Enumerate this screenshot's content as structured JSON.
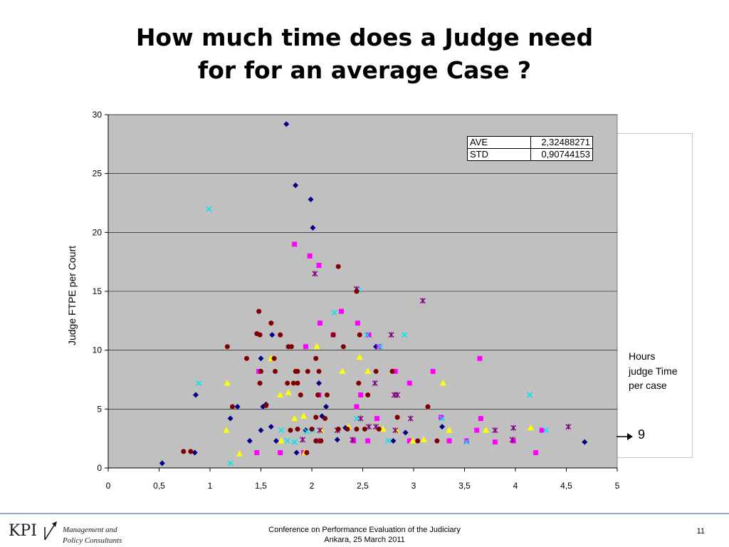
{
  "title": {
    "line1": "How much time does a Judge need",
    "line2": "for for an average Case ?"
  },
  "stats_table": {
    "rows": [
      {
        "label": "AVE",
        "value": "2,32488271"
      },
      {
        "label": "STD",
        "value": "0,90744153"
      }
    ]
  },
  "side_note": {
    "label": "Hours judge Time per case",
    "value": "9",
    "arrow_icon": "right-arrow-icon"
  },
  "footer": {
    "logo_text": "KPI",
    "tagline_line1": "Management and",
    "tagline_line2": "Policy Consultants",
    "conference_line1": "Conference on Performance Evaluation of the Judiciary",
    "conference_line2": "Ankara, 25 March 2011",
    "slide_number": "11",
    "rule_color": "#9aa9c8"
  },
  "chart_data": {
    "type": "scatter",
    "xlabel": "",
    "ylabel": "Judge FTPE per Court",
    "xlim": [
      0,
      5
    ],
    "ylim": [
      0,
      30
    ],
    "x_ticks": [
      "0",
      "0,5",
      "1",
      "1,5",
      "2",
      "2,5",
      "3",
      "3,5",
      "4",
      "4,5",
      "5"
    ],
    "y_ticks": [
      "0",
      "5",
      "10",
      "15",
      "20",
      "25",
      "30"
    ],
    "grid": "horizontal",
    "background": "#c0c0c0",
    "legend": "none",
    "series": [
      {
        "marker": "diamond",
        "color": "#00008b",
        "points": [
          [
            1.75,
            29.2
          ],
          [
            1.84,
            24.0
          ],
          [
            1.99,
            22.8
          ],
          [
            2.01,
            20.4
          ],
          [
            0.53,
            0.4
          ],
          [
            0.85,
            1.3
          ],
          [
            0.86,
            6.2
          ],
          [
            1.2,
            4.2
          ],
          [
            1.27,
            5.2
          ],
          [
            1.39,
            2.3
          ],
          [
            1.5,
            3.2
          ],
          [
            1.52,
            5.2
          ],
          [
            1.55,
            5.4
          ],
          [
            1.6,
            3.5
          ],
          [
            1.61,
            11.3
          ],
          [
            1.65,
            2.3
          ],
          [
            1.85,
            1.3
          ],
          [
            1.94,
            3.2
          ],
          [
            2.07,
            7.2
          ],
          [
            2.1,
            4.4
          ],
          [
            2.14,
            5.2
          ],
          [
            2.25,
            2.4
          ],
          [
            2.33,
            3.4
          ],
          [
            2.63,
            10.3
          ],
          [
            2.8,
            2.3
          ],
          [
            2.92,
            3.0
          ],
          [
            3.28,
            3.5
          ],
          [
            4.68,
            2.2
          ],
          [
            1.5,
            9.3
          ]
        ]
      },
      {
        "marker": "square",
        "color": "#ff00ff",
        "points": [
          [
            1.83,
            19.0
          ],
          [
            1.98,
            18.0
          ],
          [
            2.07,
            17.2
          ],
          [
            2.29,
            13.3
          ],
          [
            2.45,
            12.3
          ],
          [
            2.08,
            12.3
          ],
          [
            1.94,
            10.3
          ],
          [
            1.48,
            8.2
          ],
          [
            1.46,
            1.3
          ],
          [
            1.69,
            1.3
          ],
          [
            1.92,
            1.3
          ],
          [
            2.07,
            6.2
          ],
          [
            2.21,
            11.3
          ],
          [
            2.44,
            5.2
          ],
          [
            2.48,
            6.2
          ],
          [
            2.66,
            10.3
          ],
          [
            2.56,
            11.3
          ],
          [
            2.82,
            8.2
          ],
          [
            2.96,
            7.2
          ],
          [
            2.96,
            2.3
          ],
          [
            3.19,
            8.2
          ],
          [
            3.27,
            4.3
          ],
          [
            3.35,
            2.3
          ],
          [
            3.52,
            2.3
          ],
          [
            3.62,
            3.2
          ],
          [
            3.65,
            9.3
          ],
          [
            3.66,
            4.2
          ],
          [
            3.8,
            2.2
          ],
          [
            3.98,
            2.3
          ],
          [
            4.2,
            1.3
          ],
          [
            4.26,
            3.2
          ],
          [
            2.41,
            2.3
          ],
          [
            2.55,
            2.3
          ],
          [
            2.64,
            4.2
          ]
        ]
      },
      {
        "marker": "triangle",
        "color": "#ffff00",
        "points": [
          [
            1.17,
            7.2
          ],
          [
            1.16,
            3.2
          ],
          [
            1.29,
            1.2
          ],
          [
            1.6,
            9.3
          ],
          [
            1.69,
            6.2
          ],
          [
            1.77,
            6.4
          ],
          [
            1.7,
            2.3
          ],
          [
            1.83,
            4.2
          ],
          [
            1.92,
            4.4
          ],
          [
            1.93,
            1.3
          ],
          [
            2.05,
            10.3
          ],
          [
            2.09,
            3.2
          ],
          [
            2.3,
            8.2
          ],
          [
            2.36,
            3.5
          ],
          [
            2.47,
            9.4
          ],
          [
            2.55,
            8.2
          ],
          [
            2.7,
            3.3
          ],
          [
            2.83,
            3.2
          ],
          [
            2.99,
            2.3
          ],
          [
            3.1,
            2.4
          ],
          [
            3.29,
            7.2
          ],
          [
            3.35,
            3.2
          ],
          [
            3.71,
            3.2
          ],
          [
            4.15,
            3.4
          ]
        ]
      },
      {
        "marker": "x",
        "color": "#00e5ee",
        "points": [
          [
            0.99,
            22.0
          ],
          [
            0.89,
            7.2
          ],
          [
            1.2,
            0.4
          ],
          [
            1.7,
            3.2
          ],
          [
            1.76,
            2.3
          ],
          [
            1.83,
            2.2
          ],
          [
            1.95,
            3.1
          ],
          [
            2.01,
            3.2
          ],
          [
            2.22,
            13.2
          ],
          [
            2.44,
            4.2
          ],
          [
            2.46,
            15.1
          ],
          [
            2.54,
            11.3
          ],
          [
            2.67,
            10.3
          ],
          [
            2.75,
            2.3
          ],
          [
            2.91,
            11.3
          ],
          [
            3.28,
            4.2
          ],
          [
            3.52,
            2.2
          ],
          [
            4.14,
            6.2
          ],
          [
            4.3,
            3.2
          ]
        ]
      },
      {
        "marker": "asterisk",
        "color": "#800080",
        "points": [
          [
            2.03,
            16.5
          ],
          [
            2.44,
            15.2
          ],
          [
            3.09,
            14.2
          ],
          [
            2.78,
            11.3
          ],
          [
            2.62,
            7.2
          ],
          [
            2.81,
            6.2
          ],
          [
            2.84,
            6.2
          ],
          [
            2.08,
            3.2
          ],
          [
            2.25,
            3.2
          ],
          [
            2.4,
            2.4
          ],
          [
            2.48,
            4.2
          ],
          [
            2.56,
            3.5
          ],
          [
            2.63,
            3.5
          ],
          [
            2.82,
            3.2
          ],
          [
            2.97,
            4.2
          ],
          [
            3.8,
            3.2
          ],
          [
            3.98,
            3.4
          ],
          [
            3.97,
            2.4
          ],
          [
            4.52,
            3.5
          ],
          [
            1.91,
            2.4
          ],
          [
            2.07,
            2.3
          ]
        ]
      },
      {
        "marker": "circle",
        "color": "#800000",
        "points": [
          [
            2.26,
            17.1
          ],
          [
            2.44,
            15.0
          ],
          [
            1.48,
            13.3
          ],
          [
            1.6,
            12.3
          ],
          [
            1.46,
            11.4
          ],
          [
            1.49,
            11.3
          ],
          [
            1.69,
            11.3
          ],
          [
            1.77,
            10.3
          ],
          [
            1.8,
            10.3
          ],
          [
            1.17,
            10.3
          ],
          [
            1.36,
            9.3
          ],
          [
            1.63,
            9.3
          ],
          [
            1.5,
            8.2
          ],
          [
            1.64,
            8.2
          ],
          [
            1.86,
            8.2
          ],
          [
            1.84,
            8.2
          ],
          [
            1.96,
            8.2
          ],
          [
            2.07,
            8.2
          ],
          [
            1.49,
            7.2
          ],
          [
            1.76,
            7.2
          ],
          [
            1.82,
            7.2
          ],
          [
            1.86,
            7.2
          ],
          [
            1.89,
            6.2
          ],
          [
            2.06,
            6.2
          ],
          [
            2.46,
            7.2
          ],
          [
            2.63,
            8.2
          ],
          [
            2.79,
            8.2
          ],
          [
            2.15,
            6.2
          ],
          [
            2.55,
            6.2
          ],
          [
            1.22,
            5.2
          ],
          [
            1.55,
            5.3
          ],
          [
            2.47,
            11.3
          ],
          [
            2.31,
            10.3
          ],
          [
            2.21,
            11.3
          ],
          [
            2.04,
            9.3
          ],
          [
            0.74,
            1.4
          ],
          [
            0.81,
            1.4
          ],
          [
            2.04,
            4.3
          ],
          [
            2.13,
            4.2
          ],
          [
            1.79,
            3.2
          ],
          [
            1.86,
            3.3
          ],
          [
            2.0,
            3.3
          ],
          [
            2.26,
            3.3
          ],
          [
            2.44,
            3.3
          ],
          [
            2.52,
            3.3
          ],
          [
            2.66,
            3.3
          ],
          [
            2.35,
            3.3
          ],
          [
            2.84,
            4.3
          ],
          [
            3.04,
            2.3
          ],
          [
            3.14,
            5.2
          ],
          [
            3.23,
            2.3
          ],
          [
            2.04,
            2.3
          ],
          [
            2.09,
            2.3
          ],
          [
            1.95,
            1.3
          ]
        ]
      }
    ]
  }
}
